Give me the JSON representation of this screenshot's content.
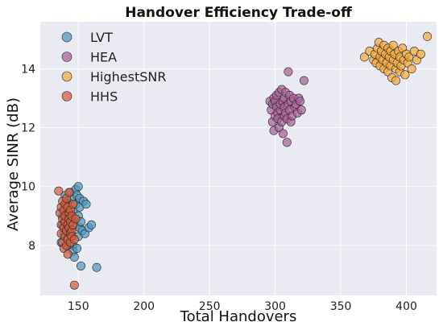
{
  "chart_data": {
    "type": "scatter",
    "title": "Handover Efficiency Trade-off",
    "xlabel": "Total Handovers",
    "ylabel": "Average SINR (dB)",
    "xlim": [
      121,
      423
    ],
    "ylim": [
      6.3,
      15.6
    ],
    "xticks": [
      150,
      200,
      250,
      300,
      350,
      400
    ],
    "yticks": [
      8,
      10,
      12,
      14
    ],
    "grid": true,
    "legend_position": "top-left",
    "series": [
      {
        "name": "LVT",
        "color": "#4f97bd",
        "points": [
          [
            137,
            8.1
          ],
          [
            138,
            8.7
          ],
          [
            138,
            9.0
          ],
          [
            139,
            8.4
          ],
          [
            140,
            9.3
          ],
          [
            140,
            9.7
          ],
          [
            141,
            8.0
          ],
          [
            141,
            8.9
          ],
          [
            142,
            9.5
          ],
          [
            142,
            8.6
          ],
          [
            143,
            8.3
          ],
          [
            143,
            9.1
          ],
          [
            144,
            9.8
          ],
          [
            144,
            8.5
          ],
          [
            145,
            8.8
          ],
          [
            145,
            9.6
          ],
          [
            146,
            9.2
          ],
          [
            146,
            8.0
          ],
          [
            146,
            7.8
          ],
          [
            147,
            7.6
          ],
          [
            147,
            8.7
          ],
          [
            148,
            9.9
          ],
          [
            148,
            9.4
          ],
          [
            148,
            8.9
          ],
          [
            149,
            7.9
          ],
          [
            149,
            9.7
          ],
          [
            150,
            8.3
          ],
          [
            150,
            10.0
          ],
          [
            150,
            9.0
          ],
          [
            151,
            9.6
          ],
          [
            151,
            8.6
          ],
          [
            151,
            9.3
          ],
          [
            152,
            7.3
          ],
          [
            152,
            8.8
          ],
          [
            153,
            8.5
          ],
          [
            154,
            9.5
          ],
          [
            155,
            8.4
          ],
          [
            156,
            9.4
          ],
          [
            158,
            8.6
          ],
          [
            160,
            8.7
          ],
          [
            164,
            7.25
          ]
        ]
      },
      {
        "name": "HEA",
        "color": "#ab5f97",
        "points": [
          [
            296,
            12.9
          ],
          [
            297,
            12.6
          ],
          [
            298,
            12.8
          ],
          [
            298,
            12.2
          ],
          [
            299,
            11.9
          ],
          [
            299,
            13.0
          ],
          [
            300,
            12.4
          ],
          [
            300,
            12.9
          ],
          [
            301,
            12.7
          ],
          [
            301,
            13.1
          ],
          [
            302,
            12.5
          ],
          [
            302,
            12.3
          ],
          [
            303,
            13.2
          ],
          [
            303,
            12.0
          ],
          [
            304,
            12.6
          ],
          [
            304,
            12.8
          ],
          [
            305,
            13.3
          ],
          [
            305,
            12.2
          ],
          [
            306,
            12.9
          ],
          [
            306,
            11.8
          ],
          [
            307,
            12.4
          ],
          [
            307,
            13.0
          ],
          [
            307,
            12.7
          ],
          [
            308,
            12.5
          ],
          [
            308,
            13.2
          ],
          [
            309,
            11.5
          ],
          [
            309,
            12.3
          ],
          [
            310,
            12.8
          ],
          [
            310,
            13.9
          ],
          [
            311,
            12.6
          ],
          [
            311,
            13.1
          ],
          [
            312,
            12.2
          ],
          [
            312,
            12.9
          ],
          [
            313,
            12.4
          ],
          [
            314,
            13.0
          ],
          [
            315,
            12.7
          ],
          [
            316,
            12.8
          ],
          [
            317,
            12.5
          ],
          [
            318,
            13.0
          ],
          [
            319,
            12.9
          ],
          [
            320,
            12.6
          ],
          [
            322,
            13.6
          ]
        ]
      },
      {
        "name": "HighestSNR",
        "color": "#f4a938",
        "points": [
          [
            368,
            14.4
          ],
          [
            372,
            14.6
          ],
          [
            375,
            14.3
          ],
          [
            376,
            14.5
          ],
          [
            377,
            14.2
          ],
          [
            378,
            14.7
          ],
          [
            379,
            14.9
          ],
          [
            380,
            14.4
          ],
          [
            380,
            14.1
          ],
          [
            381,
            14.6
          ],
          [
            382,
            14.3
          ],
          [
            383,
            14.8
          ],
          [
            383,
            14.0
          ],
          [
            384,
            14.5
          ],
          [
            385,
            14.2
          ],
          [
            386,
            14.7
          ],
          [
            386,
            13.9
          ],
          [
            387,
            14.4
          ],
          [
            388,
            14.6
          ],
          [
            388,
            14.1
          ],
          [
            389,
            13.7
          ],
          [
            390,
            14.3
          ],
          [
            390,
            14.8
          ],
          [
            391,
            14.5
          ],
          [
            392,
            14.0
          ],
          [
            392,
            13.6
          ],
          [
            393,
            14.2
          ],
          [
            394,
            14.6
          ],
          [
            395,
            14.4
          ],
          [
            395,
            13.9
          ],
          [
            396,
            14.1
          ],
          [
            397,
            14.7
          ],
          [
            398,
            14.3
          ],
          [
            399,
            13.8
          ],
          [
            400,
            14.5
          ],
          [
            401,
            14.2
          ],
          [
            402,
            14.4
          ],
          [
            404,
            14.0
          ],
          [
            406,
            14.6
          ],
          [
            408,
            14.3
          ],
          [
            411,
            14.5
          ],
          [
            416,
            15.1
          ]
        ]
      },
      {
        "name": "HHS",
        "color": "#d45a3c",
        "points": [
          [
            135,
            9.85
          ],
          [
            136,
            9.1
          ],
          [
            137,
            8.7
          ],
          [
            137,
            9.3
          ],
          [
            137,
            8.4
          ],
          [
            138,
            8.9
          ],
          [
            138,
            9.5
          ],
          [
            138,
            8.1
          ],
          [
            139,
            8.6
          ],
          [
            139,
            9.2
          ],
          [
            139,
            7.9
          ],
          [
            140,
            8.8
          ],
          [
            140,
            9.4
          ],
          [
            140,
            8.3
          ],
          [
            140,
            9.0
          ],
          [
            141,
            8.5
          ],
          [
            141,
            9.6
          ],
          [
            141,
            8.0
          ],
          [
            142,
            8.7
          ],
          [
            142,
            9.3
          ],
          [
            142,
            8.2
          ],
          [
            142,
            7.7
          ],
          [
            143,
            9.1
          ],
          [
            143,
            8.6
          ],
          [
            143,
            8.9
          ],
          [
            143,
            9.8
          ],
          [
            144,
            8.4
          ],
          [
            144,
            9.2
          ],
          [
            144,
            8.1
          ],
          [
            144,
            8.8
          ],
          [
            145,
            9.0
          ],
          [
            145,
            8.5
          ],
          [
            145,
            8.3
          ],
          [
            146,
            9.4
          ],
          [
            146,
            8.7
          ],
          [
            147,
            8.2
          ],
          [
            147,
            6.65
          ],
          [
            148,
            8.9
          ]
        ]
      }
    ]
  }
}
